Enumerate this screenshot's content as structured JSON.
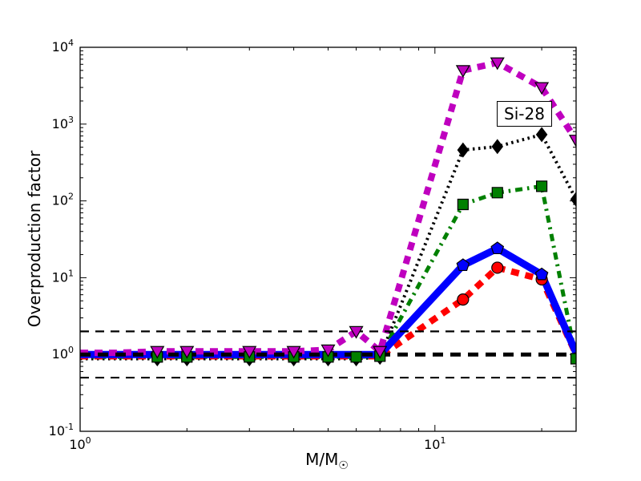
{
  "figure": {
    "background": "#ffffff",
    "annotation_label": "Si-28"
  },
  "chart_data": {
    "type": "line",
    "title": "",
    "xlabel": "M/M",
    "xlabel_sub": "☉",
    "ylabel": "Overproduction factor",
    "xscale": "log",
    "yscale": "log",
    "xlim": [
      1,
      25
    ],
    "ylim": [
      0.1,
      10000
    ],
    "grid": false,
    "legend": "none",
    "x_major_tick_exponents": [
      0,
      1
    ],
    "y_major_tick_exponents": [
      -1,
      0,
      1,
      2,
      3,
      4
    ],
    "x": [
      1,
      1.25,
      1.5,
      1.65,
      2,
      3,
      4,
      5,
      6,
      7,
      12,
      15,
      20,
      25
    ],
    "series": [
      {
        "name": "black-dotted-diamond",
        "color": "#000000",
        "linestyle": "dotted",
        "linewidth": 4,
        "marker": "diamond",
        "marker_color": "#000000",
        "values": [
          0.88,
          0.88,
          0.88,
          0.88,
          0.88,
          0.88,
          0.88,
          0.88,
          0.88,
          0.92,
          460,
          510,
          730,
          105
        ],
        "marker_x": [
          1.65,
          2,
          3,
          4,
          5,
          6,
          7,
          12,
          15,
          20,
          25
        ]
      },
      {
        "name": "green-dashdot-square",
        "color": "#008000",
        "linestyle": "dashdot",
        "linewidth": 5,
        "marker": "square",
        "marker_color": "#008000",
        "values": [
          0.93,
          0.93,
          0.93,
          0.93,
          0.93,
          0.93,
          0.93,
          0.93,
          0.93,
          0.95,
          90,
          128,
          155,
          0.88
        ],
        "marker_x": [
          1.65,
          2,
          3,
          4,
          5,
          6,
          7,
          12,
          15,
          20,
          25
        ]
      },
      {
        "name": "red-dashed-circle",
        "color": "#ff0000",
        "linestyle": "dashed",
        "linewidth": 8,
        "marker": "circle",
        "marker_color": "#ff0000",
        "values": [
          0.95,
          0.95,
          0.95,
          0.95,
          0.95,
          0.95,
          0.95,
          0.95,
          0.95,
          0.95,
          5.2,
          13.5,
          9.5,
          1.0
        ],
        "marker_x": [
          12,
          15,
          20
        ]
      },
      {
        "name": "blue-solid-pentagon",
        "color": "#0000ff",
        "linestyle": "solid",
        "linewidth": 9,
        "marker": "pentagon",
        "marker_color": "#0000ff",
        "values": [
          1.0,
          1.0,
          1.0,
          1.0,
          1.0,
          1.0,
          1.0,
          1.0,
          1.0,
          1.0,
          14.5,
          24,
          11,
          1.05
        ],
        "marker_x": [
          12,
          15,
          20
        ]
      },
      {
        "name": "magenta-dashed-triangle",
        "color": "#bf00bf",
        "linestyle": "dashed",
        "linewidth": 8,
        "marker": "triangle-down",
        "marker_color": "#bf00bf",
        "values": [
          1.05,
          1.05,
          1.08,
          1.1,
          1.1,
          1.1,
          1.1,
          1.15,
          2.0,
          1.1,
          5000,
          6300,
          3000,
          620
        ],
        "marker_x": [
          1.65,
          2,
          3,
          4,
          5,
          6,
          7,
          12,
          15,
          20,
          25
        ]
      }
    ],
    "reference_lines": [
      {
        "y": 2,
        "style": "thin-dashed",
        "color": "#000000"
      },
      {
        "y": 1,
        "style": "thick-dashed",
        "color": "#000000"
      },
      {
        "y": 0.5,
        "style": "thin-dashed",
        "color": "#000000"
      }
    ]
  }
}
